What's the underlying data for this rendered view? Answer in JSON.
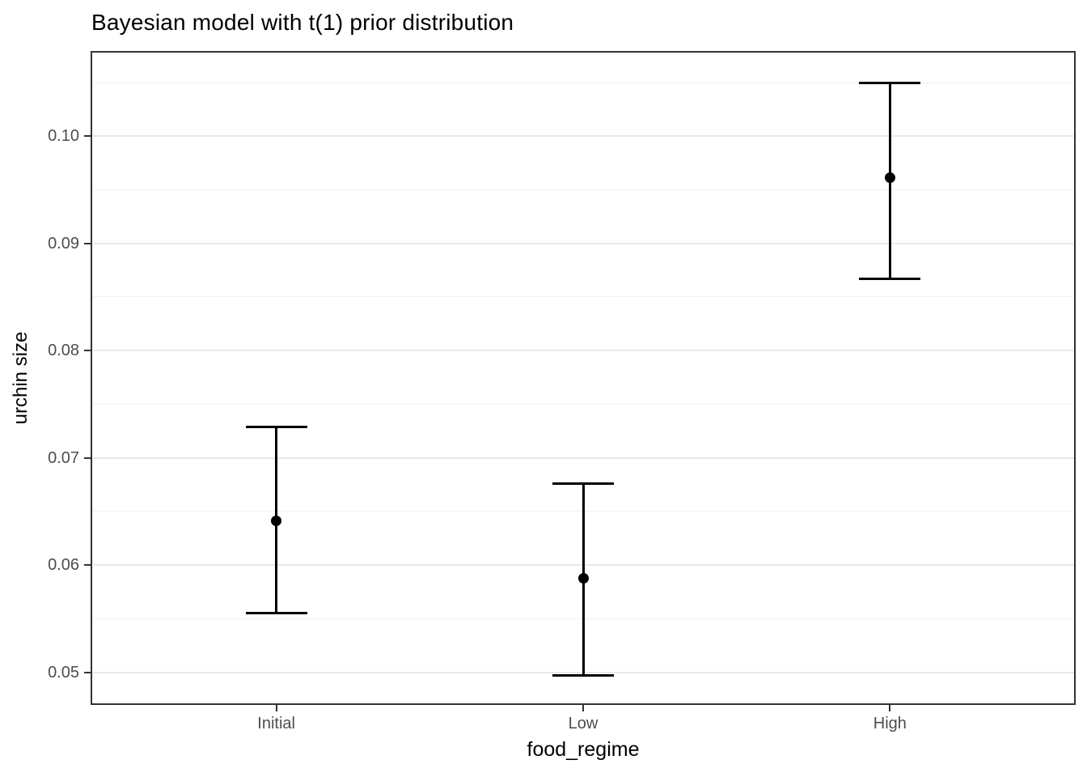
{
  "colors": {
    "background": "#ffffff",
    "panel_border": "#333333",
    "grid_major": "#e9e9e9",
    "grid_minor": "#f1f1f1",
    "data": "#000000",
    "tick_label": "#4d4d4d",
    "tick_mark": "#333333",
    "axis_title": "#000000",
    "title": "#000000"
  },
  "chart_data": {
    "type": "scatter",
    "subtype": "pointrange-with-error-bars",
    "title": "Bayesian model with t(1) prior distribution",
    "xlabel": "food_regime",
    "ylabel": "urchin size",
    "categories": [
      "Initial",
      "Low",
      "High"
    ],
    "points": [
      {
        "category": "Initial",
        "mean": 0.0641,
        "lower": 0.0555,
        "upper": 0.0729
      },
      {
        "category": "Low",
        "mean": 0.0588,
        "lower": 0.0497,
        "upper": 0.0676
      },
      {
        "category": "High",
        "mean": 0.0961,
        "lower": 0.0867,
        "upper": 0.105
      }
    ],
    "x_positions": [
      0.1875,
      0.5,
      0.8125
    ],
    "ylim": [
      0.0471,
      0.1078
    ],
    "y_major_ticks": [
      0.05,
      0.06,
      0.07,
      0.08,
      0.09,
      0.1
    ],
    "y_tick_labels": [
      "0.05",
      "0.06",
      "0.07",
      "0.08",
      "0.09",
      "0.10"
    ],
    "y_minor_ticks": [
      0.055,
      0.065,
      0.075,
      0.085,
      0.095,
      0.105
    ],
    "grid": "major-and-minor",
    "legend": "none"
  }
}
